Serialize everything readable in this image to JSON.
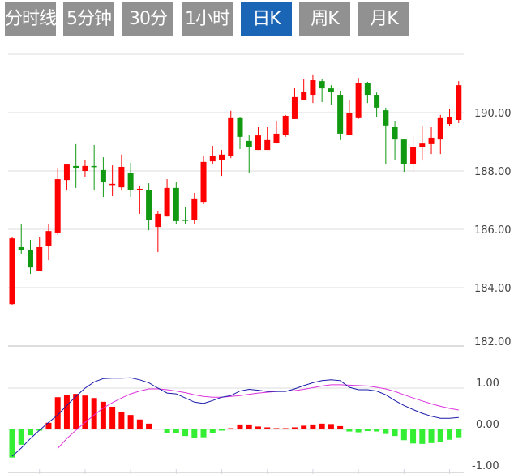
{
  "tabs": [
    {
      "label": "分时线",
      "active": false
    },
    {
      "label": "5分钟",
      "active": false
    },
    {
      "label": "30分钟",
      "active": false
    },
    {
      "label": "1小时",
      "active": false
    },
    {
      "label": "日K",
      "active": true
    },
    {
      "label": "周K",
      "active": false
    },
    {
      "label": "月K",
      "active": false
    }
  ],
  "colors": {
    "up": "#ff0000",
    "down": "#119911",
    "hist_up": "#ff0000",
    "hist_down": "#33ee33",
    "dif": "#1a1aaa",
    "dea": "#dd33dd",
    "tab": "#919191",
    "tab_active": "#1a65b5"
  },
  "chart_data": [
    {
      "type": "candlestick",
      "title": "日K",
      "ylim": [
        182,
        192
      ],
      "yticks": [
        "190.00",
        "188.00",
        "186.00",
        "184.00",
        "182.00"
      ],
      "ytick_values": [
        190,
        188,
        186,
        184,
        182
      ],
      "grid": true,
      "candles": [
        [
          183.44,
          185.69,
          185.75,
          183.39
        ],
        [
          185.39,
          185.28,
          186.17,
          185.17
        ],
        [
          185.28,
          184.69,
          185.64,
          184.47
        ],
        [
          184.58,
          185.39,
          185.75,
          184.58
        ],
        [
          185.42,
          185.94,
          186.17,
          184.94
        ],
        [
          185.89,
          187.72,
          188.11,
          185.81
        ],
        [
          187.69,
          188.22,
          188.25,
          187.33
        ],
        [
          188.17,
          188.11,
          188.92,
          187.42
        ],
        [
          188.0,
          188.17,
          188.39,
          187.78
        ],
        [
          188.17,
          188.14,
          188.89,
          187.33
        ],
        [
          188.03,
          187.61,
          188.47,
          187.11
        ],
        [
          187.53,
          187.56,
          188.19,
          187.14
        ],
        [
          187.44,
          188.14,
          188.56,
          187.33
        ],
        [
          187.94,
          187.36,
          188.28,
          187.11
        ],
        [
          187.36,
          187.39,
          187.5,
          186.53
        ],
        [
          187.36,
          186.33,
          187.58,
          185.97
        ],
        [
          186.08,
          186.53,
          186.64,
          185.22
        ],
        [
          186.44,
          187.42,
          187.72,
          186.44
        ],
        [
          187.42,
          186.28,
          187.61,
          186.17
        ],
        [
          186.33,
          186.31,
          186.78,
          186.19
        ],
        [
          186.33,
          187.06,
          187.25,
          186.17
        ],
        [
          186.94,
          188.31,
          188.5,
          186.86
        ],
        [
          188.33,
          188.5,
          188.86,
          188.22
        ],
        [
          188.39,
          188.56,
          188.72,
          187.83
        ],
        [
          188.5,
          189.81,
          190.06,
          188.44
        ],
        [
          189.81,
          189.17,
          189.86,
          188.75
        ],
        [
          189.03,
          188.81,
          189.22,
          187.94
        ],
        [
          188.72,
          189.22,
          189.5,
          188.72
        ],
        [
          188.72,
          189.06,
          189.5,
          188.72
        ],
        [
          188.97,
          189.28,
          189.72,
          188.94
        ],
        [
          189.25,
          189.89,
          189.92,
          189.17
        ],
        [
          189.78,
          190.53,
          190.86,
          189.78
        ],
        [
          190.44,
          190.72,
          191.14,
          190.44
        ],
        [
          190.61,
          191.11,
          191.31,
          190.33
        ],
        [
          191.08,
          190.83,
          191.14,
          190.36
        ],
        [
          190.83,
          190.72,
          190.94,
          190.28
        ],
        [
          190.61,
          189.28,
          190.75,
          189.06
        ],
        [
          189.25,
          190.0,
          190.42,
          189.25
        ],
        [
          189.81,
          191.0,
          191.19,
          189.78
        ],
        [
          191.0,
          190.61,
          191.06,
          190.33
        ],
        [
          190.61,
          190.17,
          190.69,
          189.86
        ],
        [
          190.08,
          189.56,
          190.17,
          188.22
        ],
        [
          189.5,
          189.08,
          189.72,
          188.39
        ],
        [
          189.08,
          188.25,
          189.08,
          187.97
        ],
        [
          188.25,
          188.83,
          189.19,
          187.97
        ],
        [
          188.83,
          188.94,
          189.53,
          188.39
        ],
        [
          188.92,
          189.14,
          189.5,
          188.58
        ],
        [
          189.08,
          189.81,
          189.92,
          188.58
        ],
        [
          189.61,
          189.86,
          190.14,
          189.53
        ],
        [
          189.75,
          190.94,
          191.08,
          189.64
        ]
      ],
      "candle_fields": [
        "open",
        "close",
        "high",
        "low"
      ]
    },
    {
      "type": "macd",
      "ylim": [
        -1,
        1
      ],
      "yticks": [
        "1.00",
        "0.00",
        "-1.00"
      ],
      "ytick_values": [
        1,
        0,
        -1
      ],
      "histogram": [
        -0.68,
        -0.37,
        -0.14,
        -0.01,
        0.16,
        0.78,
        0.84,
        0.86,
        0.82,
        0.76,
        0.67,
        0.55,
        0.43,
        0.35,
        0.24,
        0.14,
        0,
        -0.09,
        -0.09,
        -0.16,
        -0.21,
        -0.19,
        -0.08,
        -0.02,
        0.02,
        0.12,
        0.12,
        0.07,
        0.05,
        0.03,
        0.03,
        0.05,
        0.09,
        0.12,
        0.14,
        0.13,
        0.08,
        -0.05,
        -0.07,
        -0.04,
        -0.05,
        -0.11,
        -0.16,
        -0.26,
        -0.34,
        -0.35,
        -0.33,
        -0.31,
        -0.25,
        -0.19
      ],
      "dif": [
        -0.65,
        -0.45,
        -0.22,
        -0.02,
        0.17,
        0.35,
        0.58,
        0.8,
        1.0,
        1.15,
        1.23,
        1.24,
        1.24,
        1.25,
        1.2,
        1.13,
        1.0,
        0.88,
        0.86,
        0.76,
        0.66,
        0.63,
        0.7,
        0.78,
        0.82,
        0.93,
        0.97,
        0.95,
        0.92,
        0.92,
        0.92,
        0.98,
        1.06,
        1.13,
        1.18,
        1.2,
        1.18,
        1.02,
        0.96,
        0.96,
        0.93,
        0.84,
        0.7,
        0.58,
        0.48,
        0.39,
        0.32,
        0.27,
        0.27,
        0.29
      ],
      "dea": [
        null,
        null,
        null,
        null,
        null,
        -0.46,
        -0.22,
        -0.02,
        0.17,
        0.35,
        0.52,
        0.65,
        0.76,
        0.86,
        0.93,
        0.98,
        0.98,
        0.96,
        0.93,
        0.89,
        0.84,
        0.8,
        0.78,
        0.78,
        0.8,
        0.82,
        0.85,
        0.88,
        0.9,
        0.92,
        0.93,
        0.94,
        0.97,
        1.01,
        1.05,
        1.08,
        1.08,
        1.07,
        1.06,
        1.05,
        1.02,
        0.98,
        0.92,
        0.84,
        0.76,
        0.69,
        0.62,
        0.56,
        0.51,
        0.47
      ]
    }
  ]
}
